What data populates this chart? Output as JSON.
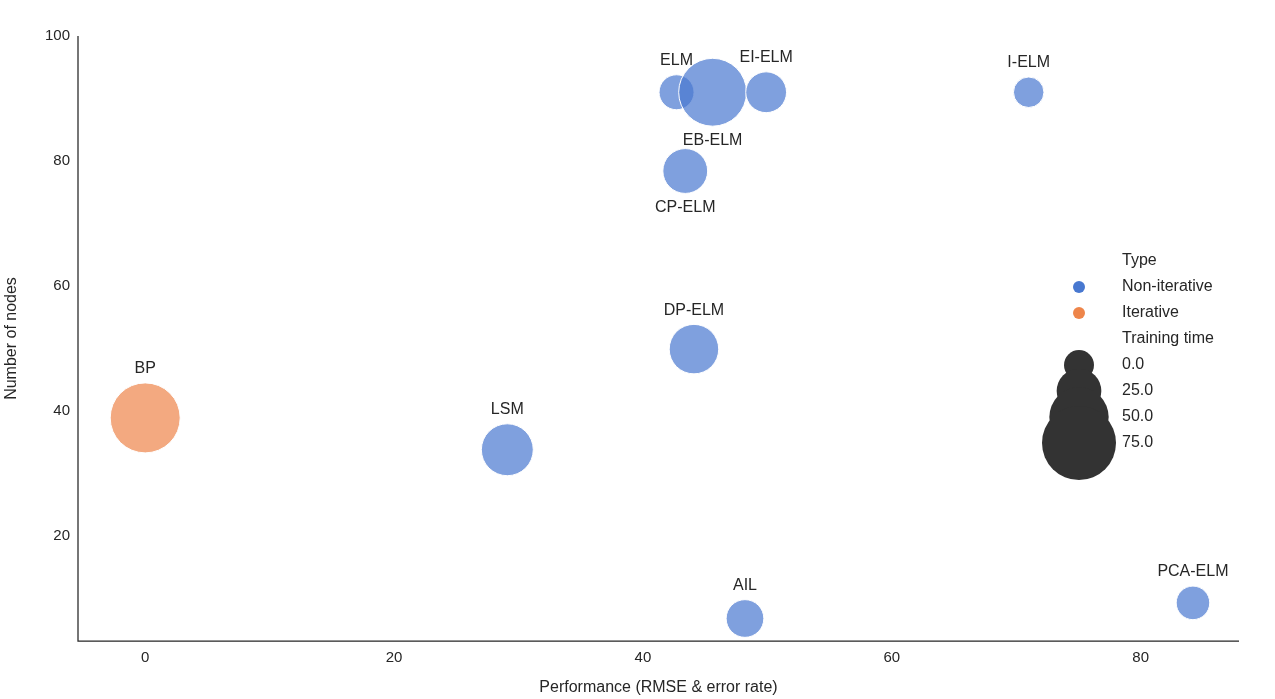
{
  "chart_data": {
    "type": "bubble",
    "xlabel": "Performance (RMSE & error rate)",
    "ylabel": "Number of nodes",
    "legend_title": "Type",
    "legend": "right",
    "grid": false,
    "xlim": [
      -5.4,
      87.9
    ],
    "xticks": [
      0,
      20,
      40,
      60,
      80
    ],
    "ylim": [
      3.2,
      100
    ],
    "yticks": [
      20,
      40,
      60,
      80,
      100
    ],
    "series": [
      {
        "name": "Non-iterative",
        "color": "#4878d0",
        "x": [
          42.7,
          45.6,
          49.9,
          71.0,
          43.4,
          44.1,
          29.1,
          48.2,
          84.2
        ],
        "values": [
          91,
          91,
          91,
          91,
          78.4,
          49.9,
          33.8,
          6.8,
          9.3
        ],
        "sizes": [
          0.25,
          0.94,
          0.34,
          0.19,
          0.41,
          0.5,
          0.55,
          0.29,
          0.23
        ]
      },
      {
        "name": "Iterative",
        "color": "#ee854a",
        "x": [
          0
        ],
        "values": [
          38.9
        ],
        "sizes": [
          1
        ]
      }
    ],
    "annotations": [
      {
        "text": "ELM",
        "x": 42.7,
        "y": 91
      },
      {
        "text": "EB-ELM",
        "x": 45.6,
        "y": 91
      },
      {
        "text": "EI-ELM",
        "x": 49.9,
        "y": 91
      },
      {
        "text": "I-ELM",
        "x": 71.0,
        "y": 91
      },
      {
        "text": "CP-ELM",
        "x": 43.4,
        "y": 78.4
      },
      {
        "text": "DP-ELM",
        "x": 44.1,
        "y": 49.9
      },
      {
        "text": "LSM",
        "x": 29.1,
        "y": 33.8
      },
      {
        "text": "AIL",
        "x": 48.2,
        "y": 6.8
      },
      {
        "text": "PCA-ELM",
        "x": 84.2,
        "y": 9.3
      },
      {
        "text": "BP",
        "x": 0,
        "y": 38.9
      },
      "Training time",
      "0.0",
      "25.0",
      "50.0",
      "75.0"
    ]
  }
}
